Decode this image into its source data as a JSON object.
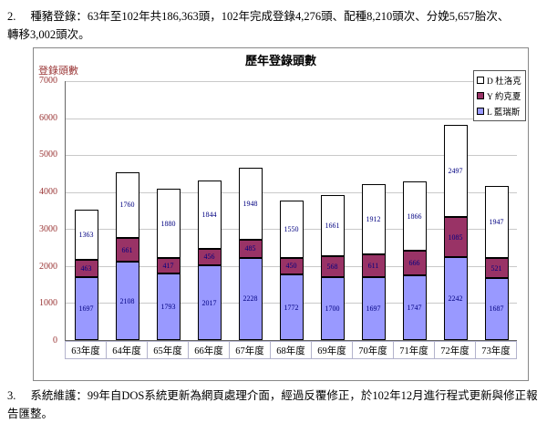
{
  "document": {
    "paragraph2": {
      "number": "2.",
      "text": "種豬登錄：63年至102年共186,363頭，102年完成登錄4,276頭、配種8,210頭次、分娩5,657胎次、\n轉移3,002頭次。"
    },
    "paragraph3": {
      "number": "3.",
      "text": "系統維護：99年自DOS系統更新為網頁處理介面，經過反覆修正，於102年12月進行程式更新與修正報\n告匯整。"
    }
  },
  "chart_data": {
    "type": "bar",
    "stacked": true,
    "title": "歷年登錄頭數",
    "ylabel": "登錄頭數",
    "xlabel": "",
    "ylim": [
      0,
      7000
    ],
    "ytick_interval": 1000,
    "grid": true,
    "legend_position": "top-right",
    "categories": [
      "63年度",
      "64年度",
      "65年度",
      "66年度",
      "67年度",
      "68年度",
      "69年度",
      "70年度",
      "71年度",
      "72年度",
      "73年度"
    ],
    "series": [
      {
        "name": "L 藍瑞斯",
        "color": "#9999ff",
        "values": [
          1697,
          2108,
          1793,
          2017,
          2228,
          1772,
          1700,
          1697,
          1747,
          2242,
          1687
        ]
      },
      {
        "name": "Y 約克夏",
        "color": "#993366",
        "values": [
          463,
          661,
          417,
          456,
          485,
          450,
          568,
          611,
          666,
          1085,
          521
        ]
      },
      {
        "name": "D 杜洛克",
        "color": "#ffffff",
        "values": [
          1363,
          1760,
          1880,
          1844,
          1948,
          1550,
          1661,
          1912,
          1866,
          2497,
          1947
        ]
      }
    ],
    "legend": [
      {
        "label": "D 杜洛克",
        "color": "#ffffff"
      },
      {
        "label": "Y 約克夏",
        "color": "#993366"
      },
      {
        "label": "L 藍瑞斯",
        "color": "#9999ff"
      }
    ],
    "colors": {
      "grid": "#c9c9c9",
      "axis": "#666666",
      "tick_text": "#993333",
      "value_text": "#000080"
    }
  }
}
